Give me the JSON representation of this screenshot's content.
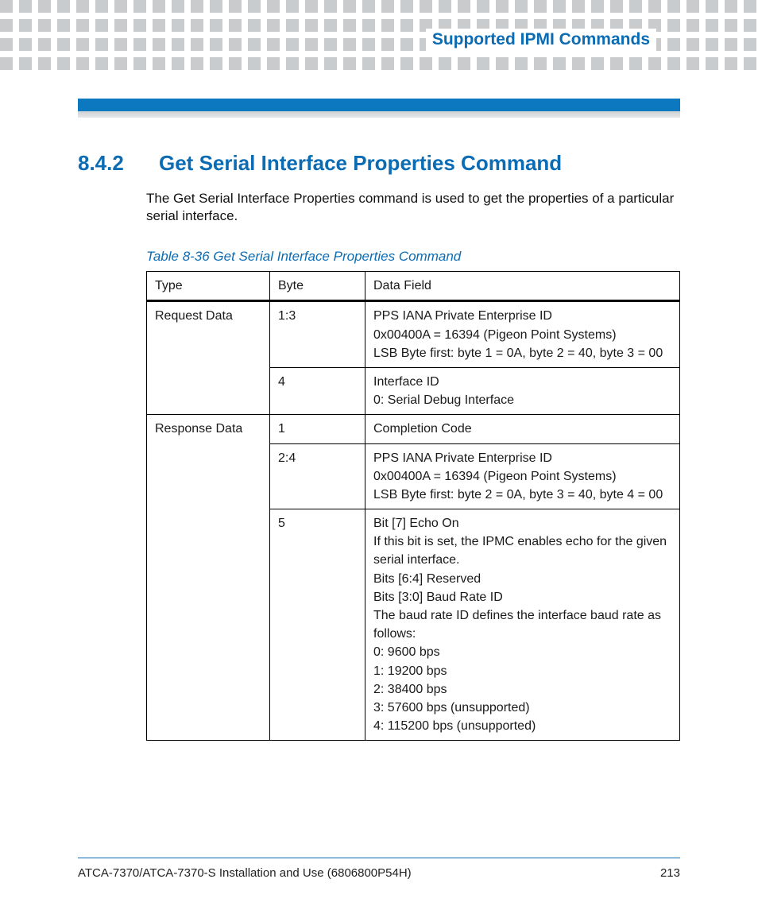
{
  "header": {
    "chapter_title": "Supported IPMI Commands"
  },
  "section": {
    "number": "8.4.2",
    "title": "Get Serial Interface Properties Command",
    "body": "The Get Serial Interface Properties command is used to get the properties of a particular serial interface."
  },
  "table": {
    "caption": "Table 8-36 Get Serial Interface Properties Command",
    "columns": [
      "Type",
      "Byte",
      "Data Field"
    ],
    "rows": [
      {
        "type": "Request Data",
        "type_rowspan": 2,
        "byte": "1:3",
        "data": [
          "PPS IANA Private Enterprise ID",
          "0x00400A = 16394 (Pigeon Point Systems)",
          "LSB Byte first: byte 1 = 0A, byte 2 = 40, byte 3 = 00"
        ]
      },
      {
        "byte": "4",
        "data": [
          "Interface ID",
          "0: Serial Debug Interface"
        ]
      },
      {
        "type": "Response Data",
        "type_rowspan": 3,
        "byte": "1",
        "data": [
          "Completion Code"
        ]
      },
      {
        "byte": "2:4",
        "data": [
          "PPS IANA Private Enterprise ID",
          "0x00400A = 16394 (Pigeon Point Systems)",
          "LSB Byte first: byte 2 = 0A, byte 3 = 40, byte 4 = 00"
        ]
      },
      {
        "byte": "5",
        "data": [
          "Bit [7] Echo On",
          "If this bit is set, the IPMC enables echo for the given serial interface.",
          "Bits [6:4] Reserved",
          "Bits [3:0] Baud Rate ID",
          "The baud rate ID defines the interface baud rate as follows:",
          "0: 9600 bps",
          "1: 19200 bps",
          "2: 38400 bps",
          "3: 57600 bps (unsupported)",
          "4: 115200 bps (unsupported)"
        ]
      }
    ]
  },
  "footer": {
    "doc_title": "ATCA-7370/ATCA-7370-S Installation and Use (6806800P54H)",
    "page_number": "213"
  },
  "colors": {
    "accent": "#0b6cb3",
    "bar": "#0b78bf",
    "dots": "#c9cbcc"
  }
}
